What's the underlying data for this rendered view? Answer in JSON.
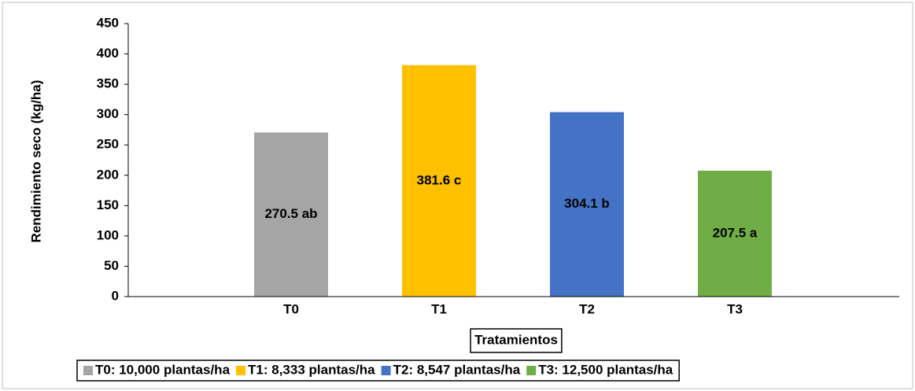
{
  "chart_data": {
    "type": "bar",
    "y_label": "Rendimiento seco (kg/ha)",
    "x_label": "Tratamientos",
    "categories": [
      "T0",
      "T1",
      "T2",
      "T3"
    ],
    "series": [
      {
        "name": "T0: 10,000 plantas/ha",
        "color": "#a5a5a5",
        "values": [
          270.5,
          null,
          null,
          null
        ],
        "value_labels": [
          "270.5 ab",
          null,
          null,
          null
        ]
      },
      {
        "name": "T1: 8,333 plantas/ha",
        "color": "#ffc000",
        "values": [
          null,
          381.6,
          null,
          null
        ],
        "value_labels": [
          null,
          "381.6 c",
          null,
          null
        ]
      },
      {
        "name": "T2: 8,547 plantas/ha",
        "color": "#4472c4",
        "values": [
          null,
          null,
          304.1,
          null
        ],
        "value_labels": [
          null,
          null,
          "304.1 b",
          null
        ]
      },
      {
        "name": "T3: 12,500 plantas/ha",
        "color": "#70ad47",
        "values": [
          null,
          null,
          null,
          207.5
        ],
        "value_labels": [
          null,
          null,
          null,
          "207.5 a"
        ]
      }
    ],
    "ylim": [
      0,
      450
    ],
    "yticks": [
      0,
      50,
      100,
      150,
      200,
      250,
      300,
      350,
      400,
      450
    ],
    "grid": false,
    "legend": "bottom"
  }
}
